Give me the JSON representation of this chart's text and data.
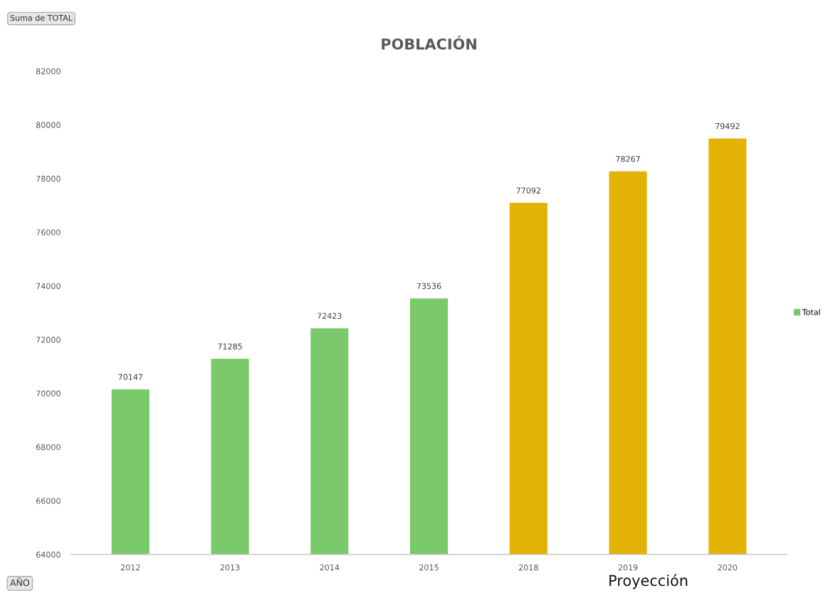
{
  "chart_data": {
    "type": "bar",
    "title": "POBLACIÓN",
    "categories": [
      "2012",
      "2013",
      "2014",
      "2015",
      "2018",
      "2019",
      "2020"
    ],
    "series": [
      {
        "name": "Total",
        "color": "#7ac96a",
        "colors": [
          "#7ac96a",
          "#7ac96a",
          "#7ac96a",
          "#7ac96a",
          "#e2b205",
          "#e2b205",
          "#e2b205"
        ],
        "values": [
          70147,
          71285,
          72423,
          73536,
          77092,
          78267,
          79492
        ]
      }
    ],
    "ylim": [
      64000,
      82000
    ],
    "yticks": [
      64000,
      66000,
      68000,
      70000,
      72000,
      74000,
      76000,
      78000,
      80000,
      82000
    ],
    "data_labels": true,
    "grid": false,
    "legend": "right",
    "annotations": [
      "Suma de TOTAL",
      "AÑO",
      "Proyección"
    ]
  }
}
